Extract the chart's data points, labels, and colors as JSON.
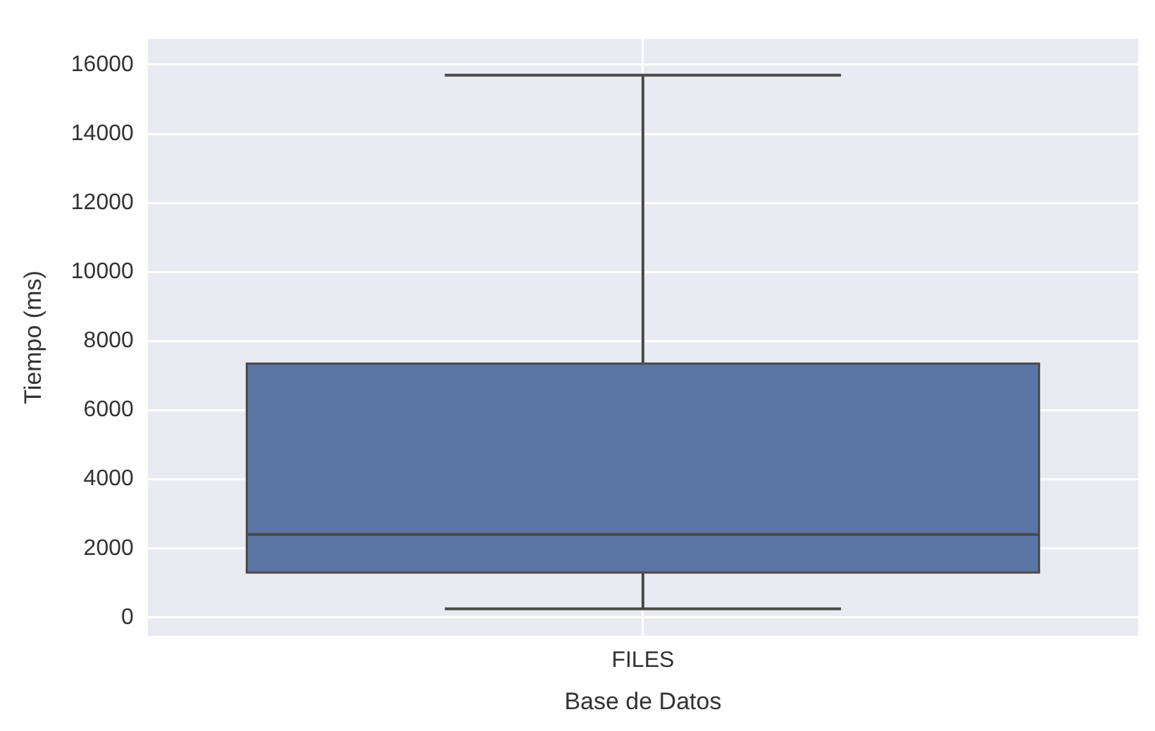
{
  "chart_data": {
    "type": "box",
    "xlabel": "Base de Datos",
    "ylabel": "Tiempo (ms)",
    "categories": [
      "FILES"
    ],
    "boxes": [
      {
        "low": 250,
        "q1": 1300,
        "median": 2400,
        "q3": 7350,
        "high": 15700
      }
    ],
    "color": "#5975a4",
    "ylim": [
      -530,
      16750
    ],
    "yticks": [
      0,
      2000,
      4000,
      6000,
      8000,
      10000,
      12000,
      14000,
      16000
    ],
    "grid": true
  }
}
